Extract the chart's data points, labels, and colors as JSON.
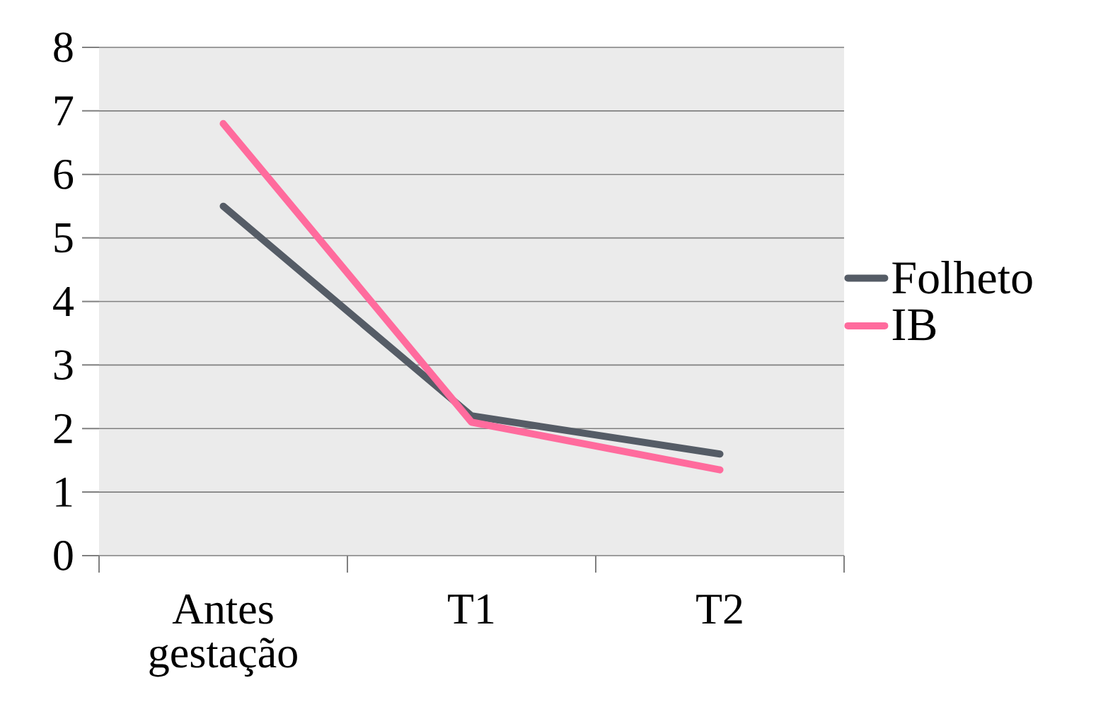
{
  "chart_data": {
    "type": "line",
    "categories": [
      "Antes gestação",
      "T1",
      "T2"
    ],
    "series": [
      {
        "name": "Folheto",
        "color": "#555c66",
        "values": [
          5.5,
          2.2,
          1.6
        ]
      },
      {
        "name": "IB",
        "color": "#ff6b9d",
        "values": [
          6.8,
          2.1,
          1.35
        ]
      }
    ],
    "ylim": [
      0,
      8
    ],
    "yticks": [
      0,
      1,
      2,
      3,
      4,
      5,
      6,
      7,
      8
    ],
    "grid": "y",
    "legend": "right",
    "marker": "none",
    "line_style": "solid"
  }
}
